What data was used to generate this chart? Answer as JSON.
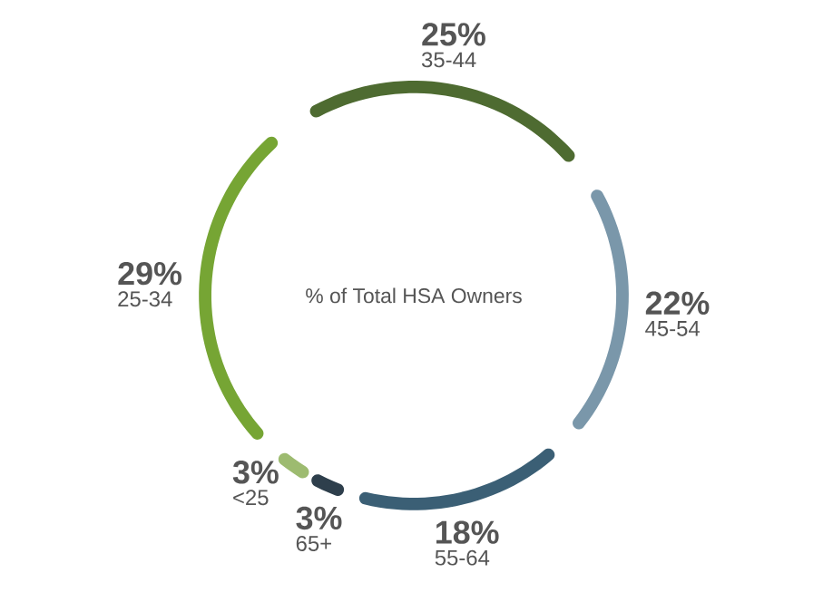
{
  "chart_data": {
    "type": "donut",
    "title": "% of Total HSA Owners",
    "categories": [
      "35-44",
      "45-54",
      "55-64",
      "65+",
      "<25",
      "25-34"
    ],
    "values": [
      25,
      22,
      18,
      3,
      3,
      29
    ],
    "value_labels": [
      "25%",
      "22%",
      "18%",
      "3%",
      "3%",
      "29%"
    ],
    "colors": [
      "#4e6b31",
      "#7a97aa",
      "#3b5f75",
      "#2e3f4c",
      "#9dbb70",
      "#76a534"
    ]
  }
}
